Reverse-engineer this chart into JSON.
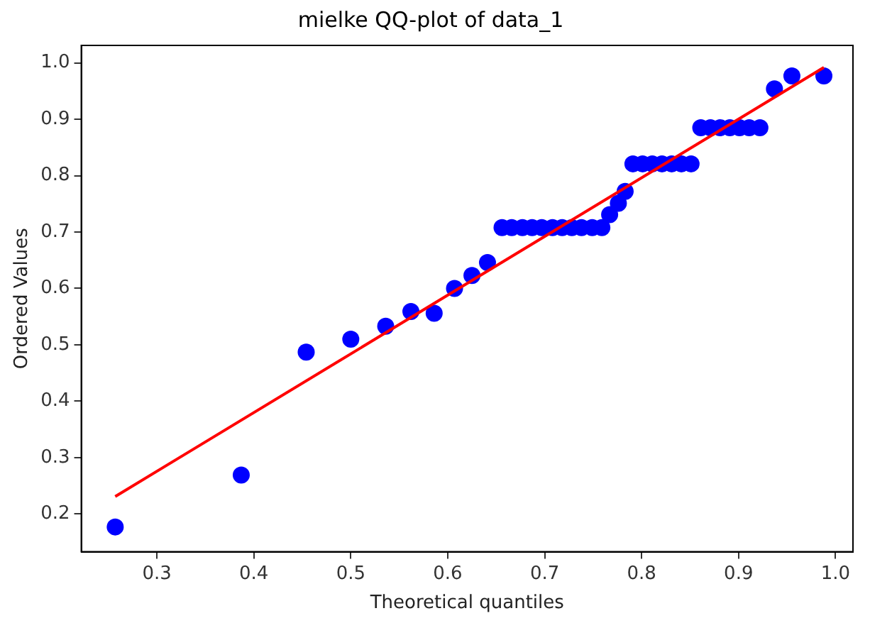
{
  "chart_data": {
    "type": "scatter",
    "title": "mielke QQ-plot of data_1",
    "xlabel": "Theoretical quantiles",
    "ylabel": "Ordered Values",
    "xlim": [
      0.222,
      1.018
    ],
    "ylim": [
      0.133,
      1.031
    ],
    "xticks": [
      0.3,
      0.4,
      0.5,
      0.6,
      0.7,
      0.8,
      0.9,
      {
        "value": 1,
        "label": "1.0"
      }
    ],
    "yticks": [
      0.2,
      0.3,
      0.4,
      0.5,
      0.6,
      0.7,
      0.8,
      0.9,
      {
        "value": 1,
        "label": "1.0"
      }
    ],
    "grid": false,
    "legend": false,
    "series": [
      {
        "color": "#0000ff",
        "marker": "circle",
        "x": [
          0.257,
          0.387,
          0.454,
          0.5,
          0.536,
          0.562,
          0.586,
          0.607,
          0.625,
          0.641,
          0.656,
          0.666,
          0.677,
          0.687,
          0.697,
          0.708,
          0.718,
          0.728,
          0.738,
          0.749,
          0.759,
          0.767,
          0.776,
          0.783,
          0.791,
          0.801,
          0.811,
          0.821,
          0.831,
          0.841,
          0.851,
          0.861,
          0.871,
          0.881,
          0.891,
          0.901,
          0.911,
          0.922,
          0.937,
          0.955,
          0.988
        ],
        "values": [
          0.177,
          0.269,
          0.487,
          0.51,
          0.533,
          0.559,
          0.556,
          0.6,
          0.623,
          0.646,
          0.708,
          0.708,
          0.708,
          0.708,
          0.708,
          0.708,
          0.708,
          0.708,
          0.708,
          0.708,
          0.708,
          0.731,
          0.751,
          0.772,
          0.821,
          0.821,
          0.821,
          0.821,
          0.821,
          0.821,
          0.821,
          0.885,
          0.885,
          0.885,
          0.885,
          0.885,
          0.885,
          0.885,
          0.954,
          0.977,
          0.977
        ]
      },
      {
        "type": "line",
        "color": "#ff0000",
        "marker": "none",
        "x": [
          0.257,
          0.988
        ],
        "values": [
          0.231,
          0.992
        ]
      }
    ]
  }
}
